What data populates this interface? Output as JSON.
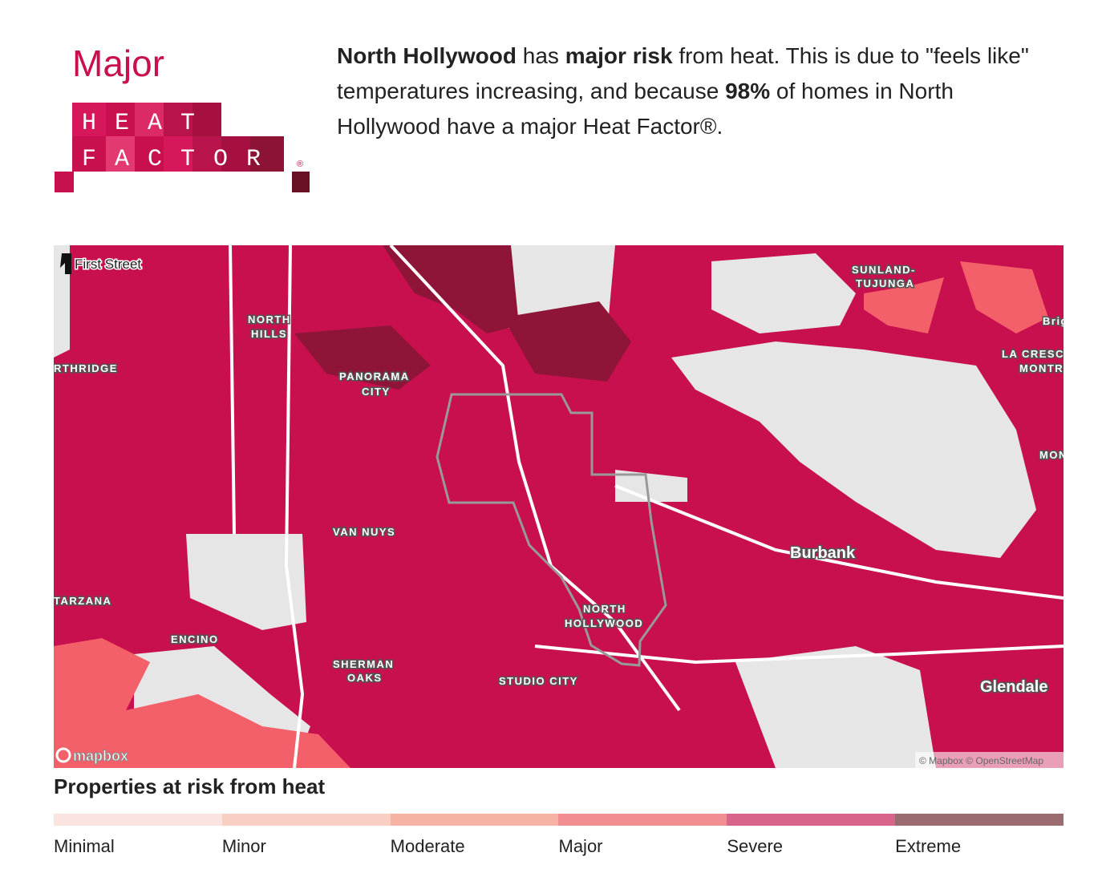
{
  "header": {
    "risk_level": "Major",
    "logo": {
      "line1": "HEAT",
      "line2": "FACTOR",
      "mark": "®"
    },
    "summary": [
      "North Hollywood",
      " has ",
      "major risk",
      " from heat. This is due to \"feels like\" temperatures increasing, and because ",
      "98%",
      " of homes in North Hollywood have a major Heat Factor®."
    ]
  },
  "map": {
    "brand": "First Street",
    "labels": [
      "NORTH",
      "HILLS",
      "RTHRIDGE",
      "PANORAMA",
      "CITY",
      "VAN NUYS",
      "TARZANA",
      "ENCINO",
      "SHERMAN",
      "OAKS",
      "STUDIO CITY",
      "NORTH",
      "HOLLYWOOD",
      "Burbank",
      "Glendale",
      "SUNLAND-",
      "TUJUNGA",
      "LA CRESC",
      "MONTR",
      "Brig",
      "MON"
    ],
    "provider": "mapbox",
    "attribution": "© Mapbox © OpenStreetMap"
  },
  "legend": {
    "title": "Properties at risk from heat",
    "items": [
      {
        "label": "Minimal",
        "color": "#fbe3df"
      },
      {
        "label": "Minor",
        "color": "#f9cec3"
      },
      {
        "label": "Moderate",
        "color": "#f6b2a3"
      },
      {
        "label": "Major",
        "color": "#f08e92"
      },
      {
        "label": "Severe",
        "color": "#d8648b"
      },
      {
        "label": "Extreme",
        "color": "#9a6b6f"
      }
    ]
  }
}
